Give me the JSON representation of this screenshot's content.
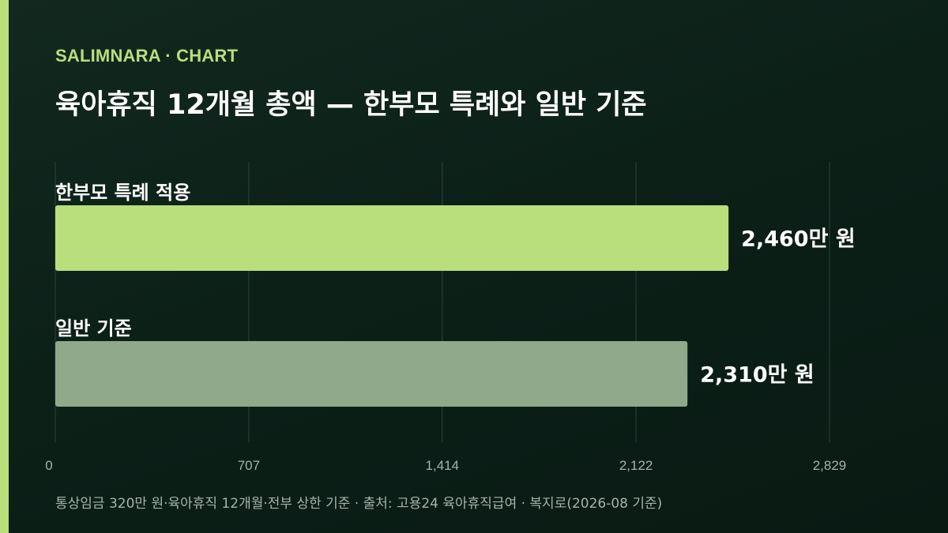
{
  "brand": "SALIMNARA · CHART",
  "title": "육아휴직 12개월 총액 — 한부모 특례와 일반 기준",
  "footnote": "통상임금 320만 원·육아휴직 12개월·전부 상한 기준 · 출처: 고용24 육아휴직급여 · 복지로(2026-08 기준)",
  "colors": {
    "accent": "#b9df7c",
    "bar_special": "#b9df7c",
    "bar_general": "#90a98b",
    "grid": "#2f4338",
    "tick_text": "#a6b3aa"
  },
  "chart_data": {
    "type": "bar",
    "orientation": "horizontal",
    "categories": [
      "한부모 특례 적용",
      "일반 기준"
    ],
    "values": [
      2460,
      2310
    ],
    "value_labels": [
      "2,460만 원",
      "2,310만 원"
    ],
    "unit": "만 원",
    "xlim": [
      0,
      2829
    ],
    "x_ticks": [
      0,
      707,
      1414,
      2122,
      2829
    ],
    "x_tick_labels": [
      "0",
      "707",
      "1,414",
      "2,122",
      "2,829"
    ],
    "grid": true,
    "legend": "none"
  }
}
